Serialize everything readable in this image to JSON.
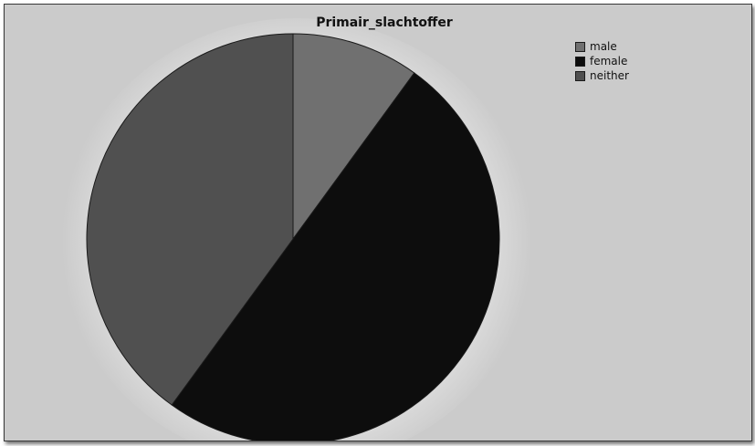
{
  "chart_data": {
    "type": "pie",
    "title": "Primair_slachtoffer",
    "categories": [
      "male",
      "female",
      "neither"
    ],
    "values": [
      10,
      50,
      40
    ],
    "colors": [
      "#707070",
      "#0d0d0d",
      "#505050"
    ],
    "legend_position": "top-right"
  }
}
